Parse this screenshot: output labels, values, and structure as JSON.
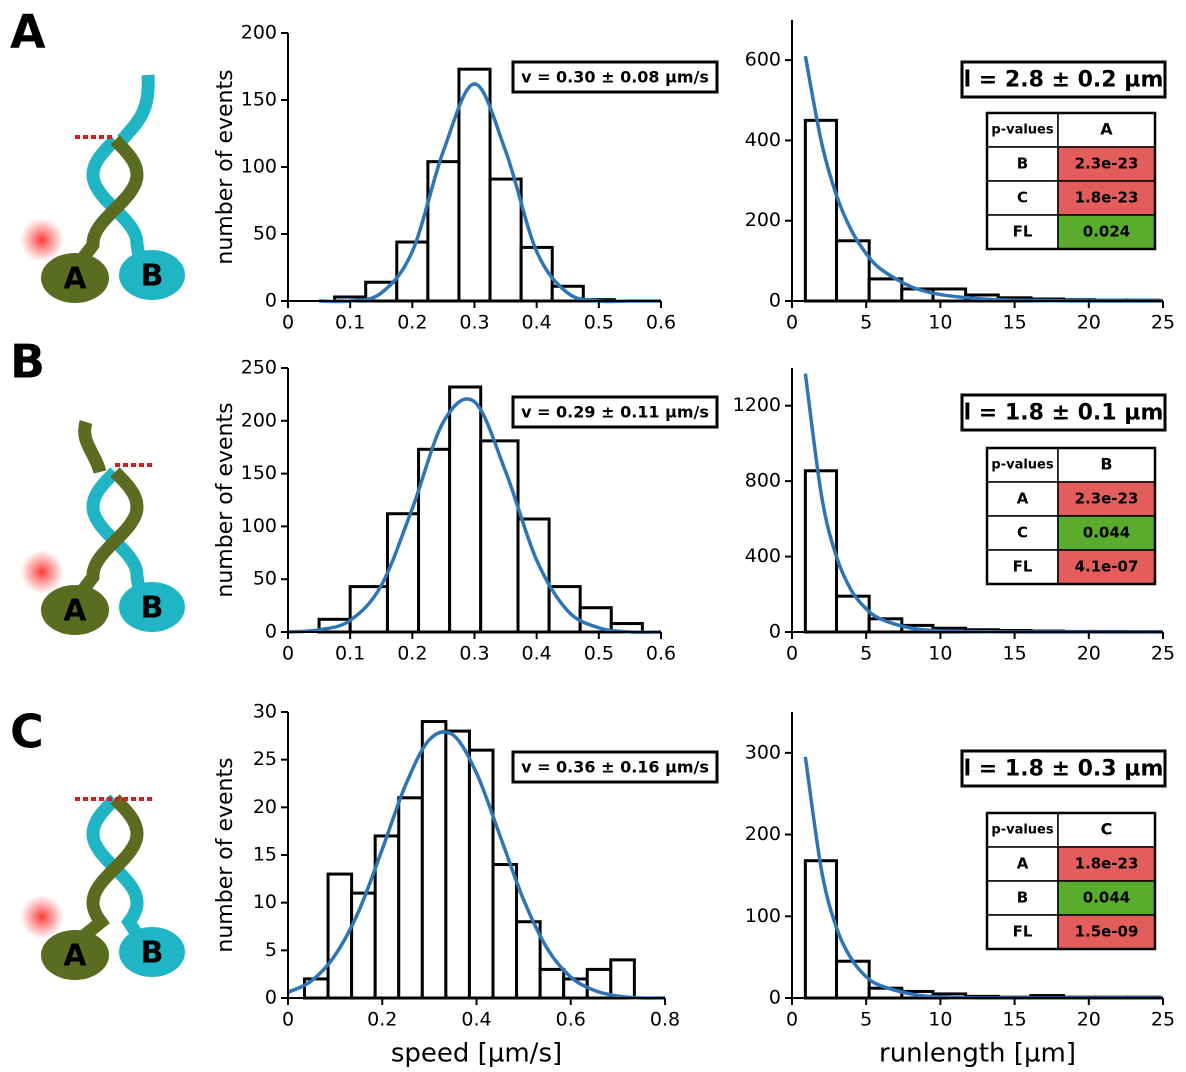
{
  "panels": [
    {
      "label": "A",
      "motor_labels": [
        "A",
        "B"
      ]
    },
    {
      "label": "B",
      "motor_labels": [
        "A",
        "B"
      ]
    },
    {
      "label": "C",
      "motor_labels": [
        "A",
        "B"
      ]
    }
  ],
  "chart_data": [
    {
      "type": "histogram",
      "ylabel": "number of events",
      "annotation": "v  = 0.30 ± 0.08 µm/s",
      "bins": [
        0.075,
        0.125,
        0.175,
        0.225,
        0.275,
        0.325,
        0.375,
        0.425,
        0.475,
        0.525
      ],
      "values": [
        3,
        14,
        44,
        104,
        173,
        91,
        40,
        11,
        1
      ],
      "color": "#ffffff",
      "edge_color": "#000000",
      "fit": {
        "x": [
          0.05,
          0.1,
          0.15,
          0.2,
          0.25,
          0.3,
          0.35,
          0.4,
          0.45,
          0.5,
          0.55,
          0.6
        ],
        "values": [
          0,
          0,
          6,
          37,
          112,
          162,
          112,
          37,
          6,
          0,
          0,
          0
        ],
        "color": "#2e75b6"
      },
      "xlim": [
        0,
        0.6
      ],
      "xticks": [
        0,
        0.1,
        0.2,
        0.3,
        0.4,
        0.5,
        0.6
      ],
      "ylim": [
        0,
        200
      ],
      "yticks": [
        0,
        50,
        100,
        150,
        200
      ]
    },
    {
      "type": "histogram",
      "annotation": "l  = 2.8 ± 0.2 µm",
      "bins": [
        0.9,
        3.0,
        5.2,
        7.4,
        9.5,
        11.7,
        13.9,
        16.1,
        18.3,
        20.4,
        22.6,
        24.8
      ],
      "values": [
        450,
        150,
        55,
        30,
        30,
        15,
        8,
        5,
        3,
        2,
        2
      ],
      "color": "#ffffff",
      "edge_color": "#000000",
      "fit": {
        "x": [
          0.9,
          2,
          3,
          4,
          5,
          6,
          8,
          10,
          12.5,
          15,
          20,
          25
        ],
        "values": [
          610,
          393,
          263,
          176,
          118,
          79,
          36,
          16,
          6,
          2,
          0,
          0
        ],
        "color": "#2e75b6"
      },
      "xlim": [
        0,
        25
      ],
      "xticks": [
        0,
        5,
        10,
        15,
        20,
        25
      ],
      "ylim": [
        0,
        700
      ],
      "yticks": [
        0,
        200,
        400,
        600
      ],
      "inset_table": {
        "header": [
          "p-values",
          "A"
        ],
        "rows": [
          {
            "label": "B",
            "value": "2.3e-23",
            "color": "#e35d5d"
          },
          {
            "label": "C",
            "value": "1.8e-23",
            "color": "#e35d5d"
          },
          {
            "label": "FL",
            "value": "0.024",
            "color": "#5aad2c"
          }
        ]
      }
    },
    {
      "type": "histogram",
      "ylabel": "number of events",
      "annotation": "v  = 0.29 ± 0.11 µm/s",
      "bins": [
        0.05,
        0.1,
        0.16,
        0.21,
        0.26,
        0.31,
        0.37,
        0.42,
        0.47,
        0.52,
        0.57
      ],
      "values": [
        12,
        43,
        112,
        173,
        232,
        181,
        107,
        43,
        23,
        8
      ],
      "color": "#ffffff",
      "edge_color": "#000000",
      "fit": {
        "x": [
          0,
          0.05,
          0.1,
          0.15,
          0.2,
          0.25,
          0.3,
          0.35,
          0.4,
          0.45,
          0.5,
          0.55,
          0.6
        ],
        "values": [
          0,
          2,
          11,
          44,
          117,
          199,
          218,
          152,
          68,
          20,
          4,
          0,
          0
        ],
        "color": "#2e75b6"
      },
      "xlim": [
        0,
        0.6
      ],
      "xticks": [
        0,
        0.1,
        0.2,
        0.3,
        0.4,
        0.5,
        0.6
      ],
      "ylim": [
        0,
        250
      ],
      "yticks": [
        0,
        50,
        100,
        150,
        200,
        250
      ]
    },
    {
      "type": "histogram",
      "annotation": "l  = 1.8 ± 0.1 µm",
      "bins": [
        0.9,
        3.0,
        5.2,
        7.4,
        9.5,
        11.7,
        13.9,
        16.1,
        18.3,
        20.4,
        22.6,
        24.8
      ],
      "values": [
        855,
        190,
        70,
        35,
        20,
        12,
        8,
        5,
        3,
        3,
        2
      ],
      "color": "#ffffff",
      "edge_color": "#000000",
      "fit": {
        "x": [
          0.9,
          2,
          3,
          4,
          5,
          6,
          8,
          10,
          12.5,
          15,
          20,
          25
        ],
        "values": [
          1370,
          718,
          399,
          221,
          123,
          68,
          21,
          6,
          2,
          0,
          0,
          0
        ],
        "color": "#2e75b6"
      },
      "xlim": [
        0,
        25
      ],
      "xticks": [
        0,
        5,
        10,
        15,
        20,
        25
      ],
      "ylim": [
        0,
        1400
      ],
      "yticks": [
        0,
        400,
        800,
        1200
      ],
      "inset_table": {
        "header": [
          "p-values",
          "B"
        ],
        "rows": [
          {
            "label": "A",
            "value": "2.3e-23",
            "color": "#e35d5d"
          },
          {
            "label": "C",
            "value": "0.044",
            "color": "#5aad2c"
          },
          {
            "label": "FL",
            "value": "4.1e-07",
            "color": "#e35d5d"
          }
        ]
      }
    },
    {
      "type": "histogram",
      "ylabel": "number of events",
      "xlabel": "speed [µm/s]",
      "annotation": "v  = 0.36 ± 0.16 µm/s",
      "bins": [
        0.035,
        0.085,
        0.135,
        0.185,
        0.235,
        0.285,
        0.335,
        0.385,
        0.435,
        0.485,
        0.535,
        0.585,
        0.635,
        0.685,
        0.735
      ],
      "values": [
        2,
        13,
        11,
        17,
        21,
        29,
        28,
        26,
        14,
        8,
        3,
        2,
        3,
        4
      ],
      "color": "#ffffff",
      "edge_color": "#000000",
      "fit": {
        "x": [
          0,
          0.05,
          0.1,
          0.15,
          0.2,
          0.25,
          0.3,
          0.35,
          0.4,
          0.45,
          0.5,
          0.55,
          0.6,
          0.65,
          0.7,
          0.75,
          0.8
        ],
        "values": [
          0.6,
          1.8,
          4.5,
          9.1,
          15.6,
          22.4,
          27.1,
          27.6,
          23.6,
          17,
          10.3,
          5.2,
          2.2,
          0.8,
          0.2,
          0,
          0
        ],
        "color": "#2e75b6"
      },
      "xlim": [
        0,
        0.8
      ],
      "xticks": [
        0,
        0.2,
        0.4,
        0.6,
        0.8
      ],
      "ylim": [
        0,
        30
      ],
      "yticks": [
        0,
        5,
        10,
        15,
        20,
        25,
        30
      ]
    },
    {
      "type": "histogram",
      "xlabel": "runlength [µm]",
      "annotation": "l  = 1.8 ± 0.3 µm",
      "bins": [
        0.9,
        3.0,
        5.2,
        7.4,
        9.5,
        11.7,
        13.9,
        16.1,
        18.3,
        20.4,
        22.6,
        24.8
      ],
      "values": [
        168,
        45,
        12,
        8,
        5,
        2,
        1,
        3,
        1,
        1,
        1
      ],
      "color": "#ffffff",
      "edge_color": "#000000",
      "fit": {
        "x": [
          0.9,
          2,
          3,
          4,
          5,
          6,
          8,
          10,
          12.5,
          15,
          20,
          25
        ],
        "values": [
          295,
          155,
          86,
          48,
          26,
          15,
          5,
          1,
          0,
          0,
          0,
          0
        ],
        "color": "#2e75b6"
      },
      "xlim": [
        0,
        25
      ],
      "xticks": [
        0,
        5,
        10,
        15,
        20,
        25
      ],
      "ylim": [
        0,
        350
      ],
      "yticks": [
        0,
        100,
        200,
        300
      ],
      "inset_table": {
        "header": [
          "p-values",
          "C"
        ],
        "rows": [
          {
            "label": "A",
            "value": "1.8e-23",
            "color": "#e35d5d"
          },
          {
            "label": "B",
            "value": "0.044",
            "color": "#5aad2c"
          },
          {
            "label": "FL",
            "value": "1.5e-09",
            "color": "#e35d5d"
          }
        ]
      }
    }
  ]
}
